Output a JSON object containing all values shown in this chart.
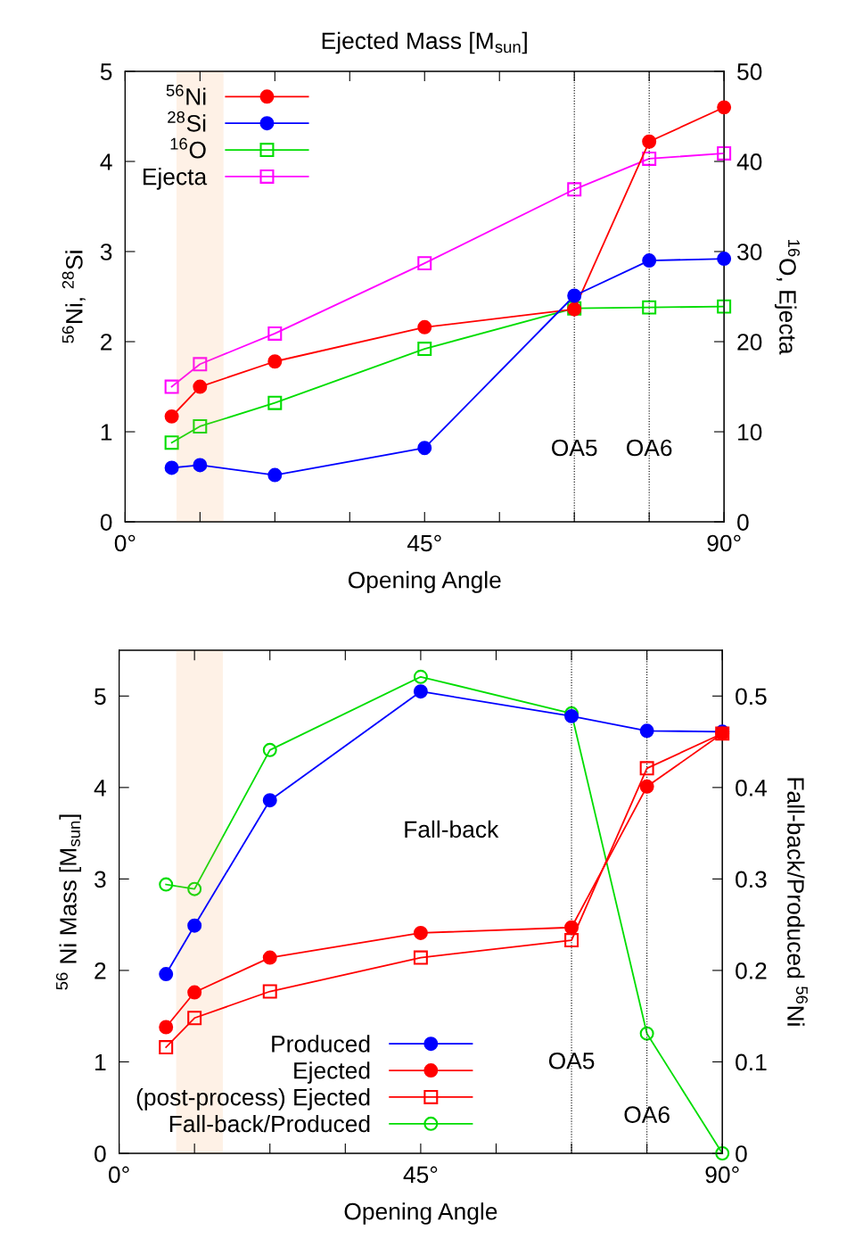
{
  "chart_data": [
    {
      "type": "line",
      "title": "Ejected Mass [M$_{sun}$]",
      "xlabel": "Opening Angle",
      "ylabel": "$^{56}$Ni, $^{28}$Si",
      "y2label": "$^{16}$O, Ejecta",
      "x": [
        7,
        11.25,
        22.5,
        45,
        67.5,
        78.75,
        90
      ],
      "series": [
        {
          "name": "$^{56}$Ni",
          "color": "#ff0000",
          "marker": "circle",
          "values": [
            1.17,
            1.5,
            1.78,
            2.16,
            2.36,
            4.22,
            4.6
          ]
        },
        {
          "name": "$^{28}$Si",
          "color": "#0000ff",
          "marker": "circle",
          "values": [
            0.6,
            0.63,
            0.52,
            0.82,
            2.51,
            2.9,
            2.92
          ]
        },
        {
          "name": "$^{16}$O",
          "color": "#00dd00",
          "marker": "square",
          "axis": "y2",
          "values": [
            8.8,
            10.6,
            13.2,
            19.2,
            23.7,
            23.8,
            23.9
          ]
        },
        {
          "name": "Ejecta",
          "color": "#ff00ff",
          "marker": "square",
          "axis": "y2",
          "values": [
            15.0,
            17.5,
            20.9,
            28.7,
            36.9,
            40.3,
            40.9
          ]
        }
      ],
      "xlim": [
        0,
        90
      ],
      "xticks": [
        {
          "value": 0,
          "label": "0°"
        },
        {
          "value": 11.25,
          "label": null
        },
        {
          "value": 22.5,
          "label": null
        },
        {
          "value": 33.75,
          "label": null
        },
        {
          "value": 45,
          "label": "45°"
        },
        {
          "value": 56.25,
          "label": null
        },
        {
          "value": 67.5,
          "label": null
        },
        {
          "value": 78.75,
          "label": null
        },
        {
          "value": 90,
          "label": "90°"
        }
      ],
      "ylim": [
        0,
        5
      ],
      "yticks": [
        0,
        1,
        2,
        3,
        4,
        5
      ],
      "y2lim": [
        0,
        50
      ],
      "y2ticks": [
        0,
        10,
        20,
        30,
        40,
        50
      ],
      "ref_lines": [
        {
          "axis": "x",
          "value": 67.5,
          "label": "OA5",
          "color": "#000000",
          "line_style": "dotted"
        },
        {
          "axis": "x",
          "value": 78.75,
          "label": "OA6",
          "color": "#000000",
          "line_style": "dotted"
        }
      ],
      "bands": [
        {
          "axis": "x",
          "from": 8.0,
          "to": 14.5,
          "color": "#f5a05a"
        }
      ],
      "legend": "top left",
      "grid": false,
      "line_style": "solid"
    },
    {
      "type": "line",
      "xlabel": "Opening Angle",
      "ylabel": "$^{56}$ Ni Mass [M$_{sun}$]",
      "y2label": "Fall-back/Produced $^{56}$Ni",
      "x": [
        7,
        11.25,
        22.5,
        45,
        67.5,
        78.75,
        90
      ],
      "series": [
        {
          "name": "Produced",
          "color": "#0000ff",
          "marker": "circle",
          "values": [
            1.96,
            2.49,
            3.86,
            5.05,
            4.78,
            4.62,
            4.61
          ]
        },
        {
          "name": "Ejected",
          "color": "#ff0000",
          "marker": "circle",
          "values": [
            1.38,
            1.76,
            2.14,
            2.41,
            2.47,
            4.01,
            4.59
          ]
        },
        {
          "name": "(post-process) Ejected",
          "color": "#ff0000",
          "marker": "square",
          "values": [
            1.16,
            1.48,
            1.77,
            2.14,
            2.33,
            4.21,
            4.59
          ]
        },
        {
          "name": "Fall-back/Produced",
          "color": "#00dd00",
          "marker": "circle",
          "axis": "y2",
          "values": [
            0.294,
            0.289,
            0.441,
            0.521,
            0.481,
            0.131,
            0.0
          ]
        }
      ],
      "xlim": [
        0,
        90
      ],
      "xticks": [
        {
          "value": 0,
          "label": "0°"
        },
        {
          "value": 11.25,
          "label": null
        },
        {
          "value": 22.5,
          "label": null
        },
        {
          "value": 33.75,
          "label": null
        },
        {
          "value": 45,
          "label": "45°"
        },
        {
          "value": 56.25,
          "label": null
        },
        {
          "value": 67.5,
          "label": null
        },
        {
          "value": 78.75,
          "label": null
        },
        {
          "value": 90,
          "label": "90°"
        }
      ],
      "ylim": [
        0,
        5.5
      ],
      "yticks": [
        0,
        1,
        2,
        3,
        4,
        5
      ],
      "y2lim": [
        0,
        0.55
      ],
      "y2ticks": [
        0,
        0.1,
        0.2,
        0.3,
        0.4,
        0.5
      ],
      "ref_lines": [
        {
          "axis": "x",
          "value": 67.5,
          "label": "OA5",
          "color": "#000000",
          "line_style": "dotted"
        },
        {
          "axis": "x",
          "value": 78.75,
          "label": "OA6",
          "color": "#000000",
          "line_style": "dotted"
        }
      ],
      "bands": [
        {
          "axis": "x",
          "from": 8.8,
          "to": 15.2,
          "color": "#f5a05a"
        }
      ],
      "annotations": [
        "Fall-back"
      ],
      "legend": "bottom left",
      "grid": false,
      "line_style": "solid"
    }
  ]
}
